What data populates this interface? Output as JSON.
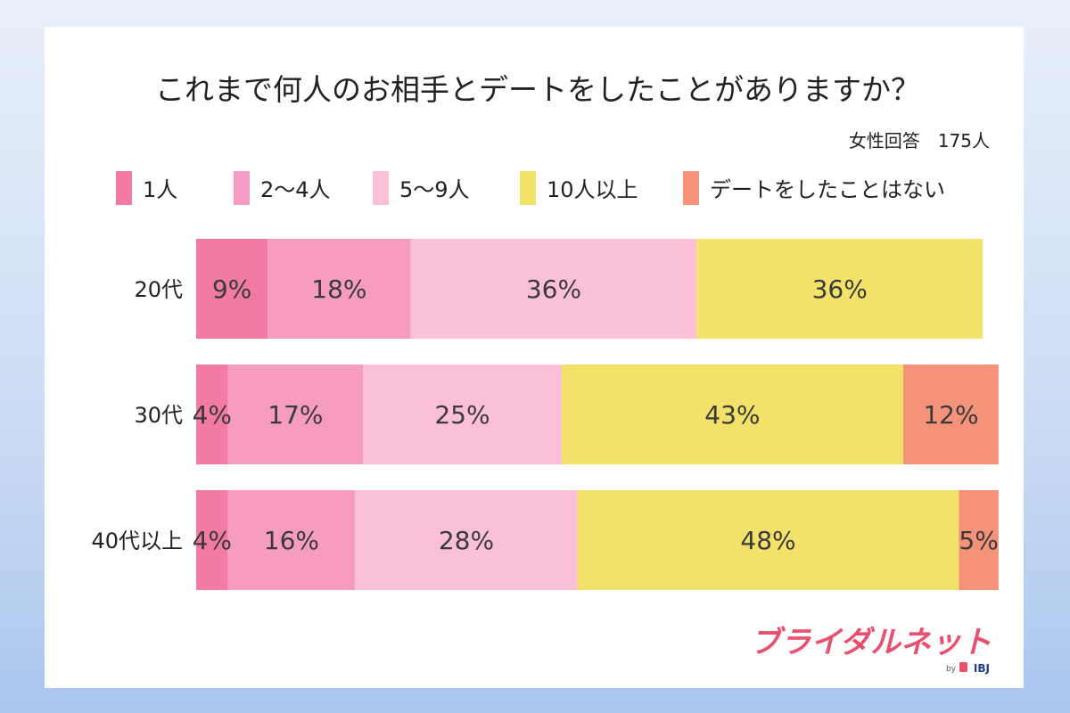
{
  "chart_data": {
    "type": "bar",
    "orientation": "horizontal",
    "stacked": true,
    "title": "これまで何人のお相手とデートをしたことがありますか？",
    "subtitle": "女性回答　175人",
    "categories": [
      "20代",
      "30代",
      "40代以上"
    ],
    "series": [
      {
        "name": "1人",
        "color": "#f27aa5",
        "values": [
          9,
          4,
          4
        ]
      },
      {
        "name": "2～4人",
        "color": "#f69cc0",
        "values": [
          18,
          17,
          16
        ]
      },
      {
        "name": "5～9人",
        "color": "#fbbfd8",
        "values": [
          36,
          25,
          28
        ]
      },
      {
        "name": "10人以上",
        "color": "#f2e26a",
        "values": [
          36,
          43,
          48
        ]
      },
      {
        "name": "デートをしたことはない",
        "color": "#f4927a",
        "values": [
          null,
          12,
          5
        ]
      }
    ],
    "value_suffix": "%",
    "legend": "top",
    "grid": false
  },
  "brand": {
    "name": "ブライダルネット",
    "by": "by",
    "company": "IBJ",
    "color": "#e8506e"
  }
}
